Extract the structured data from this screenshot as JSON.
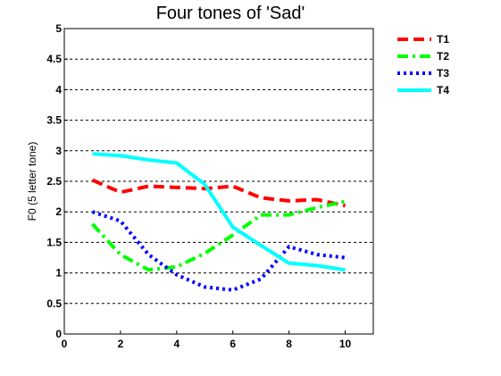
{
  "chart_data": {
    "type": "line",
    "title": "Four tones of  'Sad'",
    "xlabel": "",
    "ylabel": "F0 (5 letter tone)",
    "xlim": [
      0,
      11
    ],
    "ylim": [
      0,
      5
    ],
    "xticks": [
      "0",
      "2",
      "4",
      "6",
      "8",
      "10"
    ],
    "xtick_values": [
      0,
      2,
      4,
      6,
      8,
      10
    ],
    "yticks": [
      "0",
      "0.5",
      "1",
      "1.5",
      "2",
      "2.5",
      "3",
      "3.5",
      "4",
      "4.5",
      "5"
    ],
    "ytick_values": [
      0,
      0.5,
      1,
      1.5,
      2,
      2.5,
      3,
      3.5,
      4,
      4.5,
      5
    ],
    "grid": "horizontal dashed",
    "legend_position": "top-right",
    "x": [
      1,
      2,
      3,
      4,
      5,
      6,
      7,
      8,
      9,
      10
    ],
    "series": [
      {
        "name": "T1",
        "color": "#ff0000",
        "style": "dashed",
        "values": [
          2.52,
          2.32,
          2.42,
          2.4,
          2.38,
          2.42,
          2.23,
          2.18,
          2.2,
          2.1
        ]
      },
      {
        "name": "T2",
        "color": "#00ff00",
        "style": "dashdot",
        "values": [
          1.8,
          1.3,
          1.05,
          1.1,
          1.32,
          1.62,
          1.95,
          1.95,
          2.07,
          2.17
        ]
      },
      {
        "name": "T3",
        "color": "#0000ff",
        "style": "dotted",
        "values": [
          2.0,
          1.85,
          1.3,
          0.97,
          0.77,
          0.72,
          0.9,
          1.43,
          1.3,
          1.25
        ]
      },
      {
        "name": "T4",
        "color": "#00ffff",
        "style": "solid",
        "values": [
          2.95,
          2.92,
          2.85,
          2.8,
          2.45,
          1.75,
          1.45,
          1.16,
          1.12,
          1.05
        ]
      }
    ]
  }
}
